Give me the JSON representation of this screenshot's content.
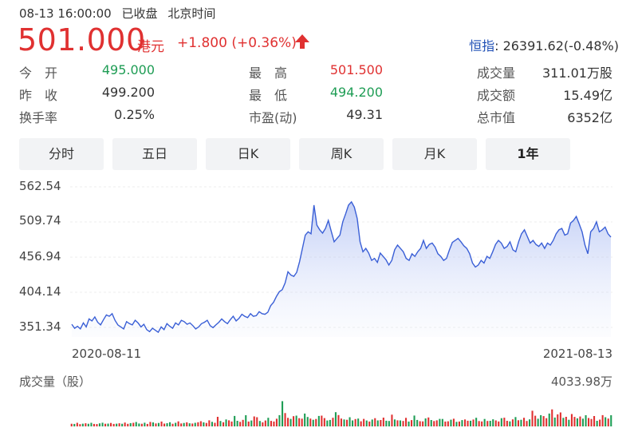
{
  "header": {
    "datetime": "08-13 16:00:00",
    "status": "已收盘",
    "timezone": "北京时间"
  },
  "quote": {
    "price": "501.000",
    "currency": "港元",
    "change": "+1.800 (+0.36%)",
    "direction_icon": "arrow-up-icon",
    "up_color": "#e03131",
    "down_color": "#1f9d55"
  },
  "index": {
    "name": "恒指",
    "value": ": 26391.62(-0.48%)"
  },
  "stats": {
    "open_label": "今　开",
    "open_value": "495.000",
    "prev_close_label": "昨　收",
    "prev_close_value": "499.200",
    "turnover_rate_label": "换手率",
    "turnover_rate_value": "0.25%",
    "high_label": "最　高",
    "high_value": "501.500",
    "low_label": "最　低",
    "low_value": "494.200",
    "pe_label": "市盈(动)",
    "pe_value": "49.31",
    "volume_label": "成交量",
    "volume_value": "311.01万股",
    "amount_label": "成交额",
    "amount_value": "15.49亿",
    "market_cap_label": "总市值",
    "market_cap_value": "6352亿"
  },
  "tabs": [
    "分时",
    "五日",
    "日K",
    "周K",
    "月K",
    "1年"
  ],
  "active_tab": "1年",
  "volume": {
    "title": "成交量（股）",
    "max_label": "4033.98万"
  },
  "chart_data": {
    "type": "area",
    "x_start": "2020-08-11",
    "x_end": "2021-08-13",
    "y_ticks": [
      "562.54",
      "509.74",
      "456.94",
      "404.14",
      "351.34"
    ],
    "ylim": [
      351.34,
      562.54
    ],
    "line_color": "#3a5fd6",
    "series": [
      {
        "values": [
          356,
          350,
          353,
          349,
          358,
          352,
          364,
          361,
          367,
          359,
          355,
          363,
          370,
          368,
          372,
          362,
          355,
          352,
          349,
          360,
          357,
          355,
          362,
          358,
          352,
          356,
          348,
          345,
          350,
          347,
          344,
          352,
          348,
          357,
          353,
          350,
          358,
          355,
          362,
          360,
          356,
          358,
          354,
          349,
          352,
          357,
          359,
          362,
          354,
          351,
          355,
          359,
          364,
          360,
          357,
          363,
          368,
          361,
          365,
          371,
          368,
          366,
          372,
          368,
          369,
          375,
          372,
          371,
          374,
          384,
          389,
          398,
          405,
          408,
          418,
          435,
          430,
          428,
          434,
          450,
          470,
          490,
          495,
          492,
          535,
          505,
          498,
          493,
          500,
          512,
          496,
          480,
          485,
          490,
          510,
          522,
          535,
          540,
          532,
          515,
          480,
          465,
          470,
          463,
          452,
          455,
          449,
          463,
          458,
          453,
          445,
          452,
          468,
          475,
          470,
          465,
          455,
          452,
          462,
          458,
          465,
          470,
          482,
          470,
          476,
          478,
          472,
          462,
          458,
          452,
          455,
          468,
          479,
          482,
          485,
          480,
          474,
          470,
          462,
          448,
          442,
          445,
          452,
          448,
          458,
          455,
          465,
          476,
          482,
          478,
          470,
          473,
          480,
          468,
          465,
          480,
          492,
          498,
          488,
          478,
          482,
          476,
          473,
          478,
          470,
          478,
          475,
          482,
          492,
          498,
          500,
          490,
          492,
          508,
          512,
          518,
          507,
          495,
          475,
          462,
          495,
          500,
          510,
          495,
          498,
          502,
          492,
          487
        ]
      }
    ]
  },
  "volume_data": {
    "type": "bar",
    "ylim": [
      0,
      4033.98
    ],
    "unit": "万股",
    "values": [
      305,
      280,
      410,
      255,
      315,
      360,
      298,
      415,
      285,
      265,
      350,
      420,
      300,
      325,
      390,
      280,
      310,
      355,
      305,
      440,
      295,
      375,
      410,
      500,
      330,
      300,
      420,
      285,
      510,
      460,
      340,
      390,
      560,
      320,
      370,
      480,
      300,
      410,
      580,
      340,
      390,
      470,
      360,
      330,
      410,
      480,
      600,
      470,
      390,
      700,
      520,
      410,
      1100,
      620,
      480,
      800,
      700,
      560,
      1200,
      640,
      520,
      750,
      1280,
      560,
      680,
      1150,
      1050,
      620,
      470,
      680,
      990,
      630,
      560,
      880,
      1290,
      2900,
      1530,
      980,
      860,
      1170,
      1240,
      940,
      890,
      1480,
      1080,
      900,
      760,
      850,
      1200,
      1240,
      950,
      680,
      740,
      990,
      1630,
      1300,
      900,
      800,
      760,
      1050,
      690,
      840,
      900,
      590,
      860,
      680,
      560,
      790,
      940,
      690,
      730,
      1010,
      650,
      620,
      1350,
      800,
      700,
      690,
      620,
      980,
      560,
      720,
      1250,
      740,
      600,
      580,
      920,
      1030,
      730,
      610,
      700,
      860,
      850,
      560,
      590,
      770,
      880,
      520,
      560,
      720,
      800,
      650,
      650,
      790,
      990,
      610,
      570,
      850,
      620,
      640,
      820,
      690,
      570,
      940,
      1000,
      640,
      580,
      810,
      1070,
      710,
      760,
      990,
      620,
      810,
      1800,
      1230,
      880,
      1290,
      1180,
      940,
      1480,
      1950,
      1020,
      1380,
      1600,
      980,
      1100,
      760,
      1420,
      1090,
      930,
      1140,
      890,
      1280,
      960,
      850,
      1190,
      640,
      780,
      1290,
      1050,
      900,
      1280
    ],
    "colors": [
      "#e03131",
      "#1f9d55",
      "#e03131",
      "#e03131",
      "#1f9d55",
      "#e03131",
      "#1f9d55",
      "#1f9d55",
      "#e03131",
      "#e03131",
      "#1f9d55",
      "#1f9d55",
      "#e03131",
      "#1f9d55",
      "#e03131",
      "#e03131",
      "#1f9d55",
      "#e03131",
      "#1f9d55",
      "#e03131",
      "#e03131",
      "#1f9d55",
      "#e03131",
      "#1f9d55",
      "#1f9d55",
      "#e03131",
      "#1f9d55",
      "#e03131",
      "#e03131",
      "#1f9d55",
      "#e03131",
      "#1f9d55",
      "#e03131",
      "#e03131",
      "#1f9d55",
      "#1f9d55",
      "#e03131",
      "#1f9d55",
      "#e03131",
      "#e03131",
      "#1f9d55",
      "#e03131",
      "#1f9d55",
      "#e03131",
      "#1f9d55",
      "#e03131",
      "#e03131",
      "#1f9d55",
      "#e03131",
      "#e03131",
      "#1f9d55",
      "#e03131",
      "#e03131",
      "#1f9d55",
      "#e03131",
      "#1f9d55",
      "#e03131",
      "#e03131",
      "#1f9d55",
      "#1f9d55",
      "#e03131",
      "#e03131",
      "#1f9d55",
      "#e03131",
      "#1f9d55",
      "#e03131",
      "#e03131",
      "#1f9d55",
      "#e03131",
      "#e03131",
      "#1f9d55",
      "#e03131",
      "#e03131",
      "#e03131",
      "#1f9d55",
      "#1f9d55",
      "#e03131",
      "#e03131",
      "#1f9d55",
      "#e03131",
      "#1f9d55",
      "#e03131",
      "#e03131",
      "#1f9d55",
      "#1f9d55",
      "#e03131",
      "#1f9d55",
      "#e03131",
      "#1f9d55",
      "#e03131",
      "#e03131",
      "#1f9d55",
      "#1f9d55",
      "#e03131",
      "#1f9d55",
      "#e03131",
      "#e03131",
      "#1f9d55",
      "#e03131",
      "#1f9d55",
      "#1f9d55",
      "#e03131",
      "#1f9d55",
      "#e03131",
      "#e03131",
      "#1f9d55",
      "#e03131",
      "#1f9d55",
      "#e03131",
      "#1f9d55",
      "#e03131",
      "#e03131",
      "#1f9d55",
      "#1f9d55",
      "#e03131",
      "#1f9d55",
      "#e03131",
      "#1f9d55",
      "#e03131",
      "#e03131",
      "#1f9d55",
      "#e03131",
      "#1f9d55",
      "#1f9d55",
      "#e03131",
      "#e03131",
      "#1f9d55",
      "#e03131",
      "#1f9d55",
      "#e03131",
      "#e03131",
      "#1f9d55",
      "#1f9d55",
      "#e03131",
      "#e03131",
      "#1f9d55",
      "#e03131",
      "#1f9d55",
      "#e03131",
      "#1f9d55",
      "#e03131",
      "#e03131",
      "#1f9d55",
      "#e03131",
      "#1f9d55",
      "#e03131",
      "#e03131",
      "#1f9d55",
      "#e03131",
      "#1f9d55",
      "#1f9d55",
      "#e03131",
      "#e03131",
      "#1f9d55",
      "#e03131",
      "#e03131",
      "#1f9d55",
      "#e03131",
      "#1f9d55",
      "#e03131",
      "#1f9d55",
      "#e03131",
      "#e03131",
      "#1f9d55",
      "#e03131",
      "#e03131",
      "#1f9d55",
      "#1f9d55",
      "#e03131",
      "#e03131",
      "#1f9d55",
      "#e03131",
      "#1f9d55",
      "#e03131",
      "#e03131",
      "#1f9d55",
      "#e03131",
      "#1f9d55",
      "#e03131",
      "#e03131",
      "#1f9d55",
      "#e03131",
      "#1f9d55",
      "#1f9d55",
      "#e03131",
      "#e03131"
    ]
  }
}
